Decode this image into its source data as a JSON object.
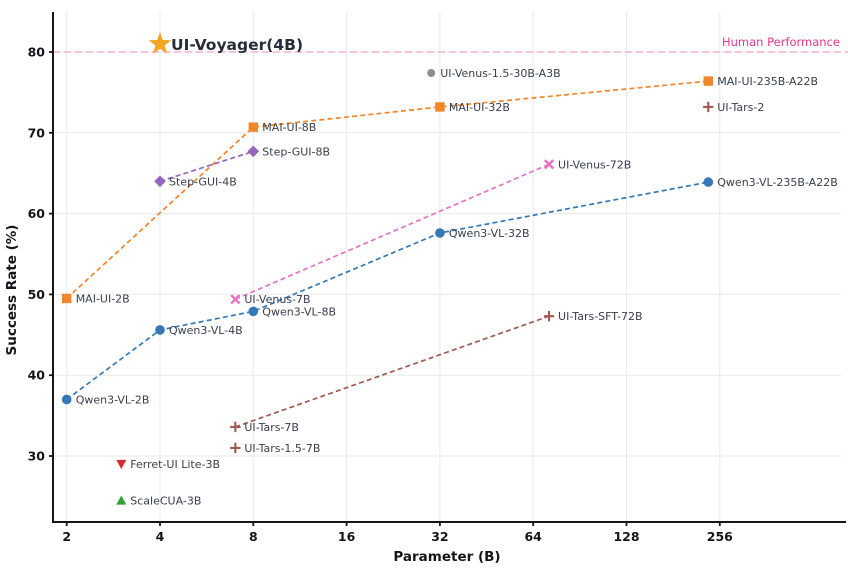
{
  "chart_data": {
    "type": "scatter",
    "title": "",
    "xlabel": "Parameter (B)",
    "ylabel": "Success Rate (%)",
    "x_scale": "log2",
    "x_ticks": [
      2,
      4,
      8,
      16,
      32,
      64,
      128,
      256
    ],
    "y_ticks": [
      30,
      40,
      50,
      60,
      70,
      80
    ],
    "ylim": [
      21.5,
      85
    ],
    "grid": true,
    "legend": "none (inline point labels)",
    "hline": {
      "y": 80,
      "label": "Human Performance",
      "line_color": "#f6bcd7",
      "label_color": "#e3368c"
    },
    "highlight": {
      "label": "UI-Voyager(4B)",
      "x": 4,
      "y": 81,
      "marker": "star",
      "color": "#f5a623",
      "label_color": "#272c3a"
    },
    "series": [
      {
        "name": "MAI-UI",
        "color": "#f1862b",
        "marker": "square",
        "dashed": true,
        "points": [
          {
            "x": 2,
            "y": 49.5,
            "label": "MAI-UI-2B"
          },
          {
            "x": 8,
            "y": 70.7,
            "label": "MAI-UI-8B"
          },
          {
            "x": 32,
            "y": 73.2,
            "label": "MAI-UI-32B"
          },
          {
            "x": 235,
            "y": 76.4,
            "label": "MAI-UI-235B-A22B"
          }
        ]
      },
      {
        "name": "Qwen3-VL",
        "color": "#3478b6",
        "marker": "circle",
        "dashed": true,
        "points": [
          {
            "x": 2,
            "y": 37.0,
            "label": "Qwen3-VL-2B"
          },
          {
            "x": 4,
            "y": 45.6,
            "label": "Qwen3-VL-4B"
          },
          {
            "x": 8,
            "y": 47.9,
            "label": "Qwen3-VL-8B"
          },
          {
            "x": 32,
            "y": 57.6,
            "label": "Qwen3-VL-32B"
          },
          {
            "x": 235,
            "y": 63.9,
            "label": "Qwen3-VL-235B-A22B"
          }
        ]
      },
      {
        "name": "UI-Venus",
        "color": "#e671c5",
        "marker": "x",
        "dashed": true,
        "points": [
          {
            "x": 7,
            "y": 49.4,
            "label": "UI-Venus-7B"
          },
          {
            "x": 72,
            "y": 66.1,
            "label": "UI-Venus-72B"
          }
        ]
      },
      {
        "name": "Step-GUI",
        "color": "#9467bd",
        "marker": "diamond",
        "dashed": true,
        "points": [
          {
            "x": 4,
            "y": 64.0,
            "label": "Step-GUI-4B"
          },
          {
            "x": 8,
            "y": 67.7,
            "label": "Step-GUI-8B"
          }
        ]
      },
      {
        "name": "UI-Tars",
        "color": "#a05a50",
        "marker": "plus",
        "dashed": true,
        "points": [
          {
            "x": 7,
            "y": 33.6,
            "label": "UI-Tars-7B"
          },
          {
            "x": 72,
            "y": 47.3,
            "label": "UI-Tars-SFT-72B"
          }
        ]
      }
    ],
    "points": [
      {
        "x": 30,
        "y": 77.4,
        "label": "UI-Venus-1.5-30B-A3B",
        "color": "#8f8f8f",
        "marker": "circle-sm"
      },
      {
        "x": 235,
        "y": 73.2,
        "label": "UI-Tars-2",
        "color": "#a05a50",
        "marker": "plus"
      },
      {
        "x": 7,
        "y": 31.0,
        "label": "UI-Tars-1.5-7B",
        "color": "#a05a50",
        "marker": "plus"
      },
      {
        "x": 3,
        "y": 29.0,
        "label": "Ferret-UI Lite-3B",
        "color": "#d62e2e",
        "marker": "triangle-down"
      },
      {
        "x": 3,
        "y": 24.5,
        "label": "ScaleCUA-3B",
        "color": "#2fa136",
        "marker": "triangle-up"
      }
    ],
    "colors": {
      "grid": "#e9e9e9",
      "spine": "#14161a",
      "tick_label": "#14161a",
      "point_label": "#39404d"
    }
  }
}
